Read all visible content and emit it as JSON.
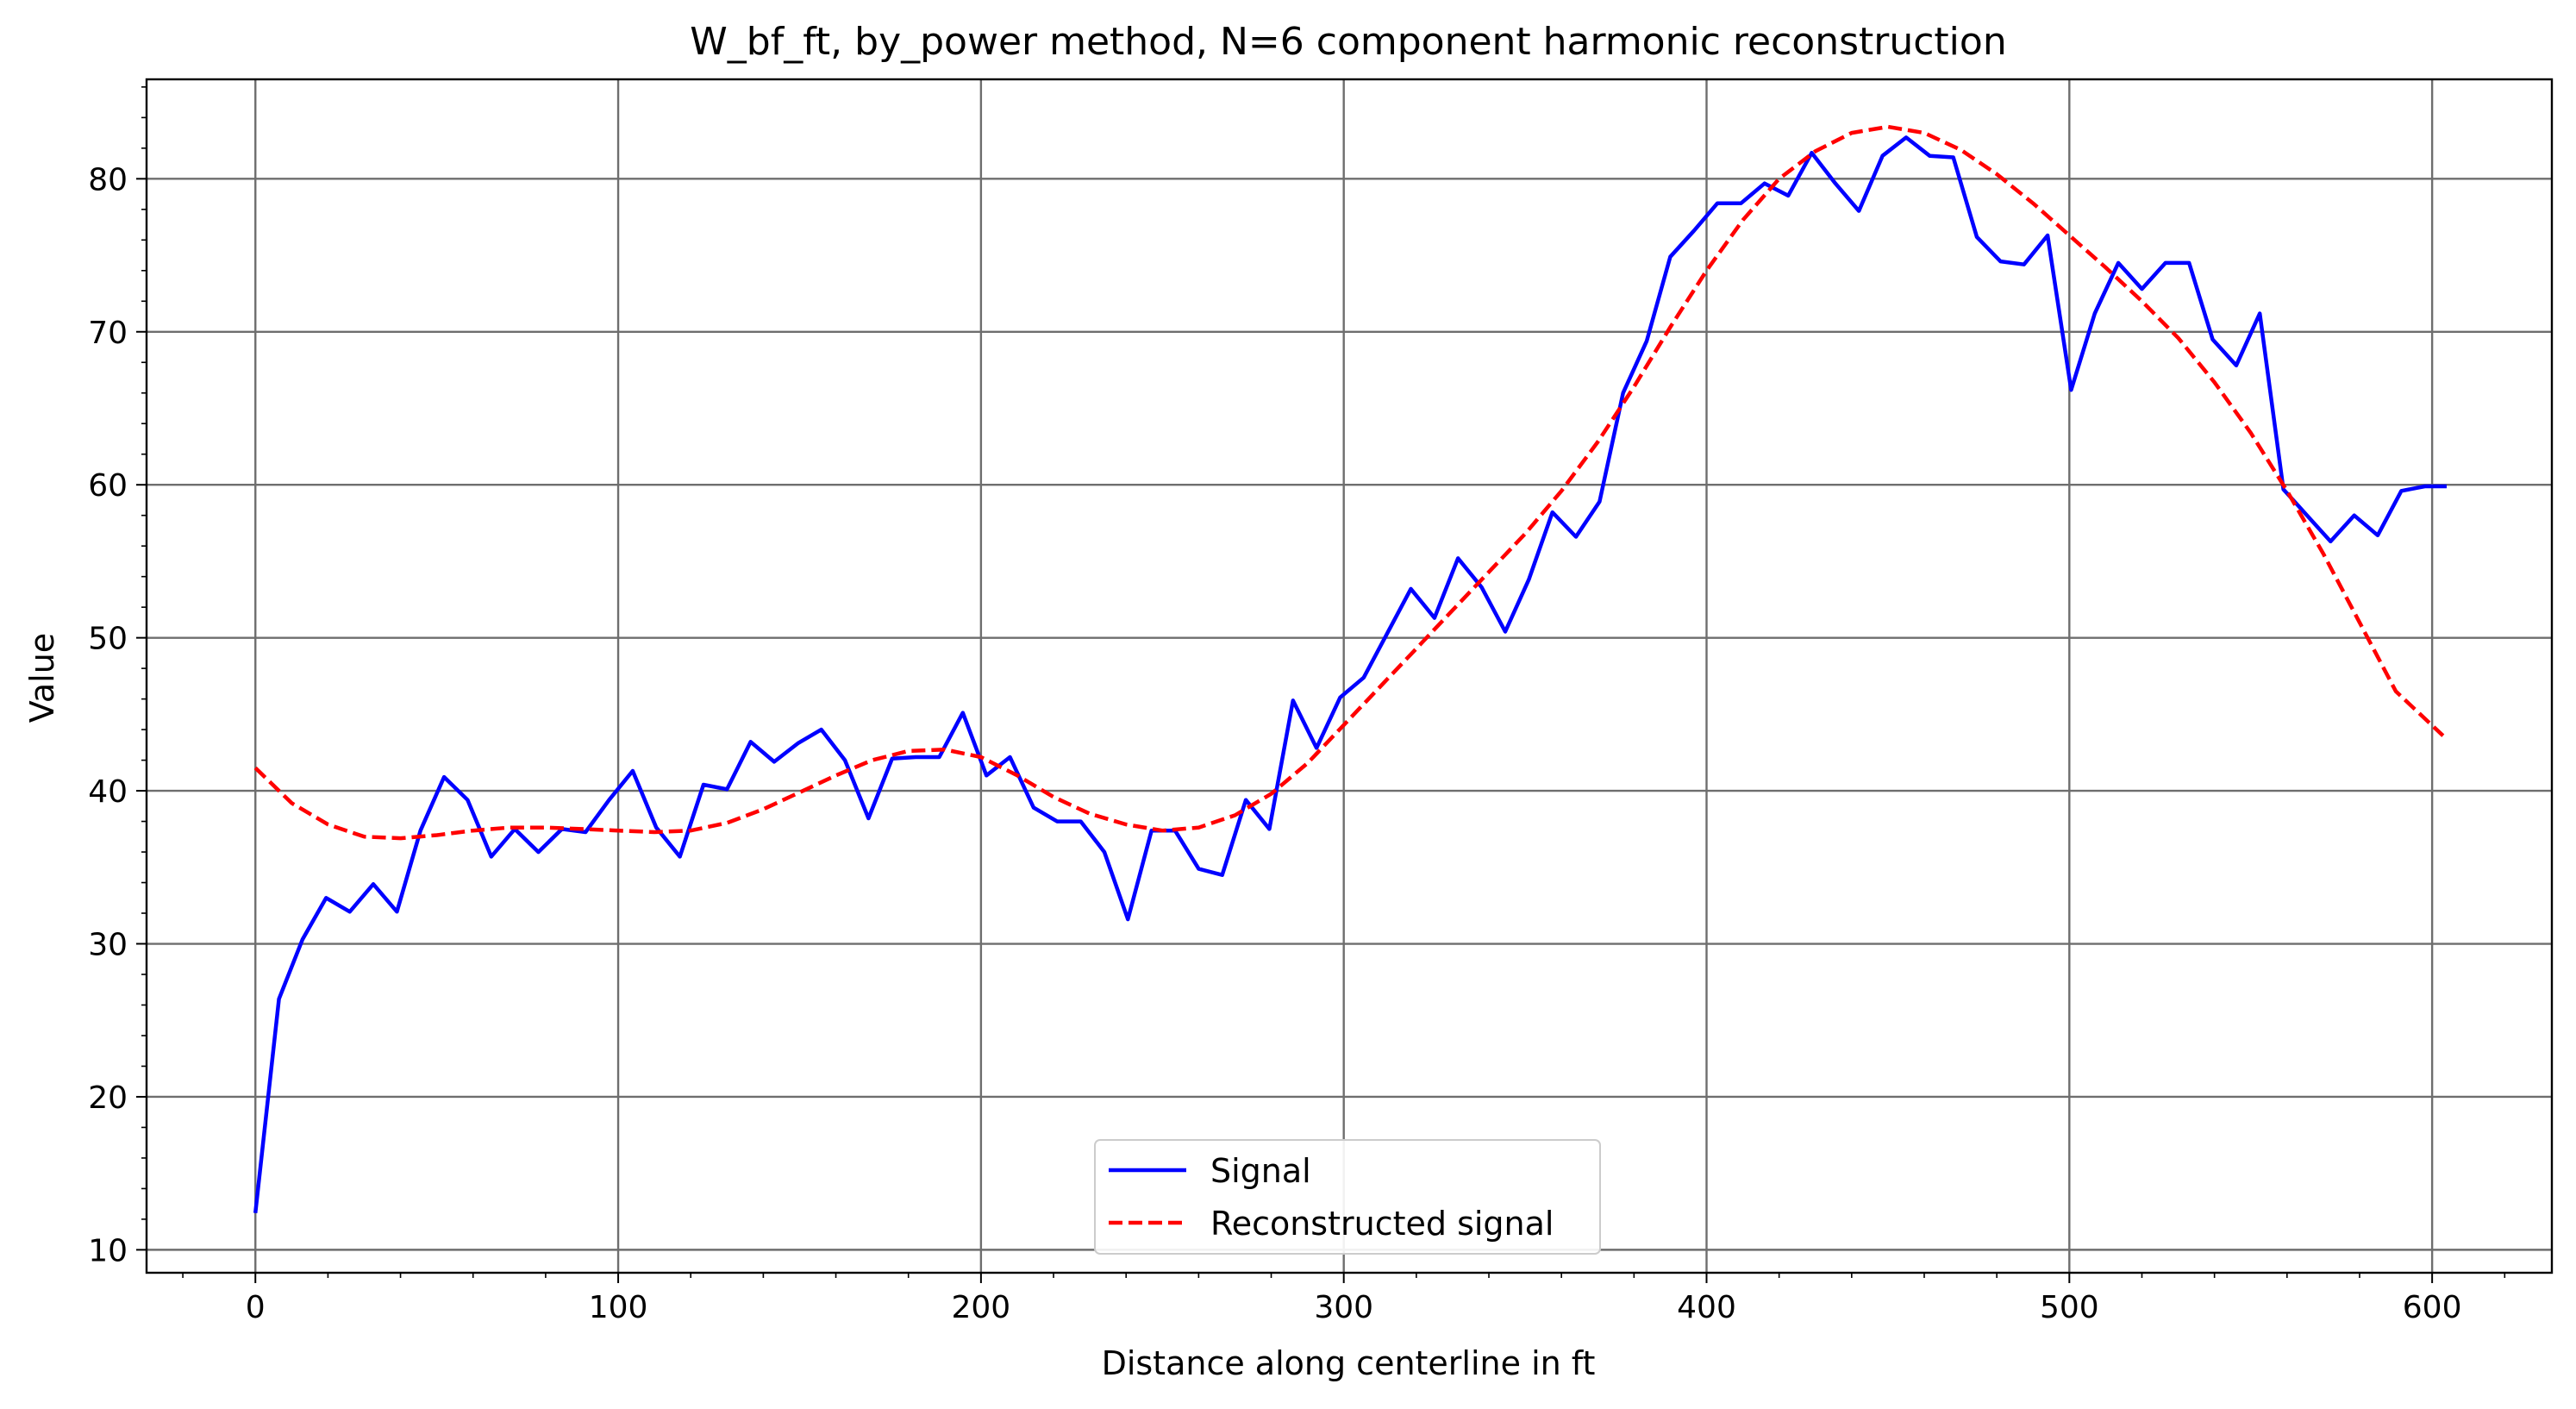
{
  "chart_data": {
    "type": "line",
    "title": "W_bf_ft, by_power method, N=6 component harmonic reconstruction",
    "xlabel": "Distance along centerline in ft",
    "ylabel": "Value",
    "xlim": [
      -30,
      633
    ],
    "ylim": [
      8.5,
      86.5
    ],
    "xticks": [
      0,
      100,
      200,
      300,
      400,
      500,
      600
    ],
    "yticks": [
      10,
      20,
      30,
      40,
      50,
      60,
      70,
      80
    ],
    "grid": true,
    "legend_position": "lower center",
    "series": [
      {
        "name": "Signal",
        "color": "#0000ff",
        "style": "solid",
        "x": [
          0,
          6.5,
          13,
          19.5,
          26,
          32.5,
          39,
          45.5,
          52,
          58.5,
          65,
          71.5,
          78,
          84.5,
          91,
          97.5,
          104,
          110.5,
          117,
          123.5,
          130,
          136.5,
          143,
          149.5,
          156,
          162.5,
          169,
          175.5,
          182,
          188.5,
          195,
          201.5,
          208,
          214.5,
          221,
          227.5,
          234,
          240.5,
          247,
          253.5,
          260,
          266.5,
          273,
          279.5,
          286,
          292.5,
          299,
          305.5,
          312,
          318.5,
          325,
          331.5,
          338,
          344.5,
          351,
          357.5,
          364,
          370.5,
          377,
          383.5,
          390,
          396.5,
          403,
          409.5,
          416,
          422.5,
          429,
          435.5,
          442,
          448.5,
          455,
          461.5,
          468,
          474.5,
          481,
          487.5,
          494,
          500.5,
          507,
          513.5,
          520,
          526.5,
          533,
          539.5,
          546,
          552.5,
          559,
          565.5,
          572,
          578.5,
          585,
          591.5,
          598,
          604
        ],
        "y": [
          12.4,
          26.4,
          30.3,
          33.0,
          32.1,
          33.9,
          32.1,
          37.4,
          40.9,
          39.4,
          35.7,
          37.5,
          36.0,
          37.5,
          37.3,
          39.4,
          41.3,
          37.6,
          35.7,
          40.4,
          40.1,
          43.2,
          41.9,
          43.1,
          44.0,
          42.0,
          38.2,
          42.1,
          42.2,
          42.2,
          45.1,
          41.0,
          42.2,
          38.9,
          38.0,
          38.0,
          36.0,
          31.6,
          37.4,
          37.4,
          34.9,
          34.5,
          39.4,
          37.5,
          45.9,
          42.8,
          46.1,
          47.4,
          50.3,
          53.2,
          51.3,
          55.2,
          53.3,
          50.4,
          53.8,
          58.2,
          56.6,
          58.9,
          66.0,
          69.4,
          74.9,
          76.6,
          78.4,
          78.4,
          79.7,
          78.9,
          81.7,
          79.7,
          77.9,
          81.5,
          82.7,
          81.5,
          81.4,
          76.2,
          74.6,
          74.4,
          76.3,
          66.2,
          71.2,
          74.5,
          72.8,
          74.5,
          74.5,
          69.5,
          67.8,
          71.2,
          59.7,
          58.0,
          56.3,
          58.0,
          56.7,
          59.6,
          59.9,
          59.9
        ]
      },
      {
        "name": "Reconstructed signal",
        "color": "#ff0000",
        "style": "dashed",
        "x": [
          0,
          10,
          20,
          30,
          40,
          50,
          60,
          70,
          80,
          90,
          100,
          110,
          120,
          130,
          140,
          150,
          160,
          170,
          180,
          190,
          200,
          210,
          220,
          230,
          240,
          250,
          260,
          270,
          280,
          290,
          300,
          310,
          320,
          330,
          340,
          350,
          360,
          370,
          380,
          390,
          400,
          410,
          420,
          430,
          440,
          450,
          460,
          470,
          480,
          490,
          500,
          510,
          520,
          530,
          540,
          550,
          560,
          570,
          580,
          590,
          603
        ],
        "y": [
          41.5,
          39.2,
          37.8,
          37.0,
          36.9,
          37.1,
          37.4,
          37.6,
          37.6,
          37.5,
          37.4,
          37.3,
          37.4,
          37.9,
          38.8,
          39.9,
          41.0,
          42.0,
          42.6,
          42.7,
          42.2,
          41.0,
          39.6,
          38.5,
          37.8,
          37.4,
          37.6,
          38.4,
          39.8,
          41.8,
          44.3,
          46.8,
          49.3,
          51.8,
          54.3,
          56.8,
          59.6,
          62.8,
          66.4,
          70.3,
          74.0,
          77.3,
          80.0,
          81.8,
          83.0,
          83.4,
          83.0,
          81.9,
          80.3,
          78.4,
          76.3,
          74.2,
          72.0,
          69.6,
          66.7,
          63.4,
          59.6,
          55.5,
          51.0,
          46.5,
          43.6
        ]
      }
    ]
  }
}
